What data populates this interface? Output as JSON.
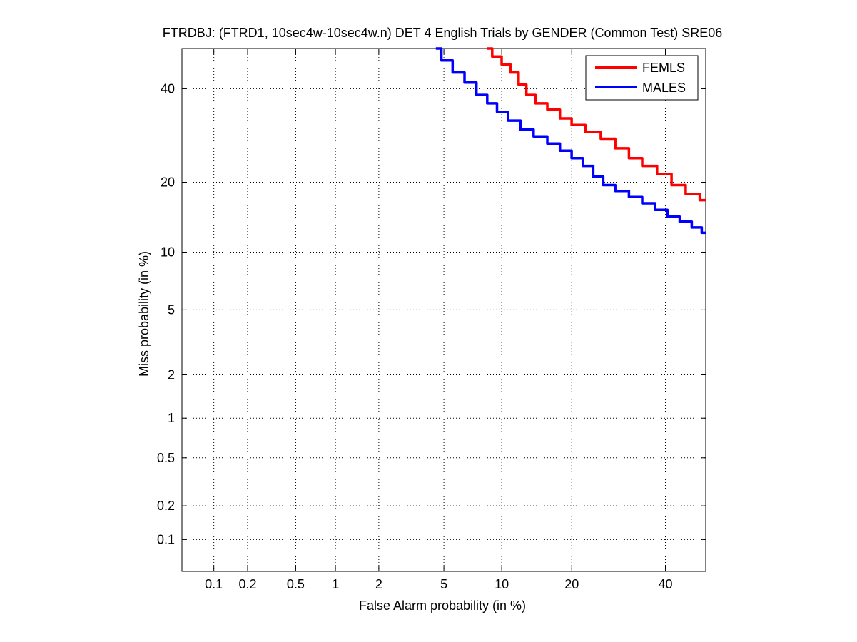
{
  "chart_data": {
    "type": "line",
    "title": "FTRDBJ: (FTRD1, 10sec4w-10sec4w.n) DET 4 English Trials by GENDER (Common Test) SRE06",
    "xlabel": "False Alarm probability (in %)",
    "ylabel": "Miss probability (in %)",
    "x_scale": "probit",
    "y_scale": "probit",
    "xlim": [
      0.05,
      50
    ],
    "ylim": [
      0.05,
      50
    ],
    "x_ticks": [
      0.1,
      0.2,
      0.5,
      1,
      2,
      5,
      10,
      20,
      40
    ],
    "x_tick_labels": [
      "0.1",
      "0.2",
      "0.5",
      "1",
      "2",
      "5",
      "10",
      "20",
      "40"
    ],
    "y_ticks": [
      0.1,
      0.2,
      0.5,
      1,
      2,
      5,
      10,
      20,
      40
    ],
    "y_tick_labels": [
      "0.1",
      "0.2",
      "0.5",
      "1",
      "2",
      "5",
      "10",
      "20",
      "40"
    ],
    "grid": true,
    "legend_position": "top-right",
    "series": [
      {
        "name": "FEMLS",
        "color": "#ff0000",
        "points": [
          [
            8.5,
            50
          ],
          [
            9.5,
            48
          ],
          [
            10.5,
            46
          ],
          [
            11.5,
            44
          ],
          [
            12.5,
            41
          ],
          [
            13.5,
            38.5
          ],
          [
            15,
            36.5
          ],
          [
            17,
            35
          ],
          [
            19,
            33
          ],
          [
            21,
            31.5
          ],
          [
            24,
            30
          ],
          [
            27,
            28.5
          ],
          [
            30,
            26.5
          ],
          [
            33,
            24.5
          ],
          [
            36,
            23
          ],
          [
            40,
            21.5
          ],
          [
            43,
            19.5
          ],
          [
            47,
            18
          ],
          [
            50,
            17
          ]
        ]
      },
      {
        "name": "MALES",
        "color": "#0000ff",
        "points": [
          [
            4.5,
            50
          ],
          [
            5.2,
            47
          ],
          [
            6,
            44
          ],
          [
            7,
            41.5
          ],
          [
            8,
            38.5
          ],
          [
            9,
            36.5
          ],
          [
            10,
            34.5
          ],
          [
            11.5,
            32.5
          ],
          [
            13,
            30.5
          ],
          [
            15,
            29
          ],
          [
            17,
            27.5
          ],
          [
            19,
            26
          ],
          [
            21,
            24.5
          ],
          [
            23,
            23
          ],
          [
            25,
            21
          ],
          [
            27,
            19.5
          ],
          [
            30,
            18.5
          ],
          [
            33,
            17.5
          ],
          [
            36,
            16.5
          ],
          [
            39,
            15.5
          ],
          [
            42,
            14.5
          ],
          [
            45,
            13.8
          ],
          [
            48,
            13
          ],
          [
            50,
            12.3
          ]
        ]
      }
    ]
  }
}
